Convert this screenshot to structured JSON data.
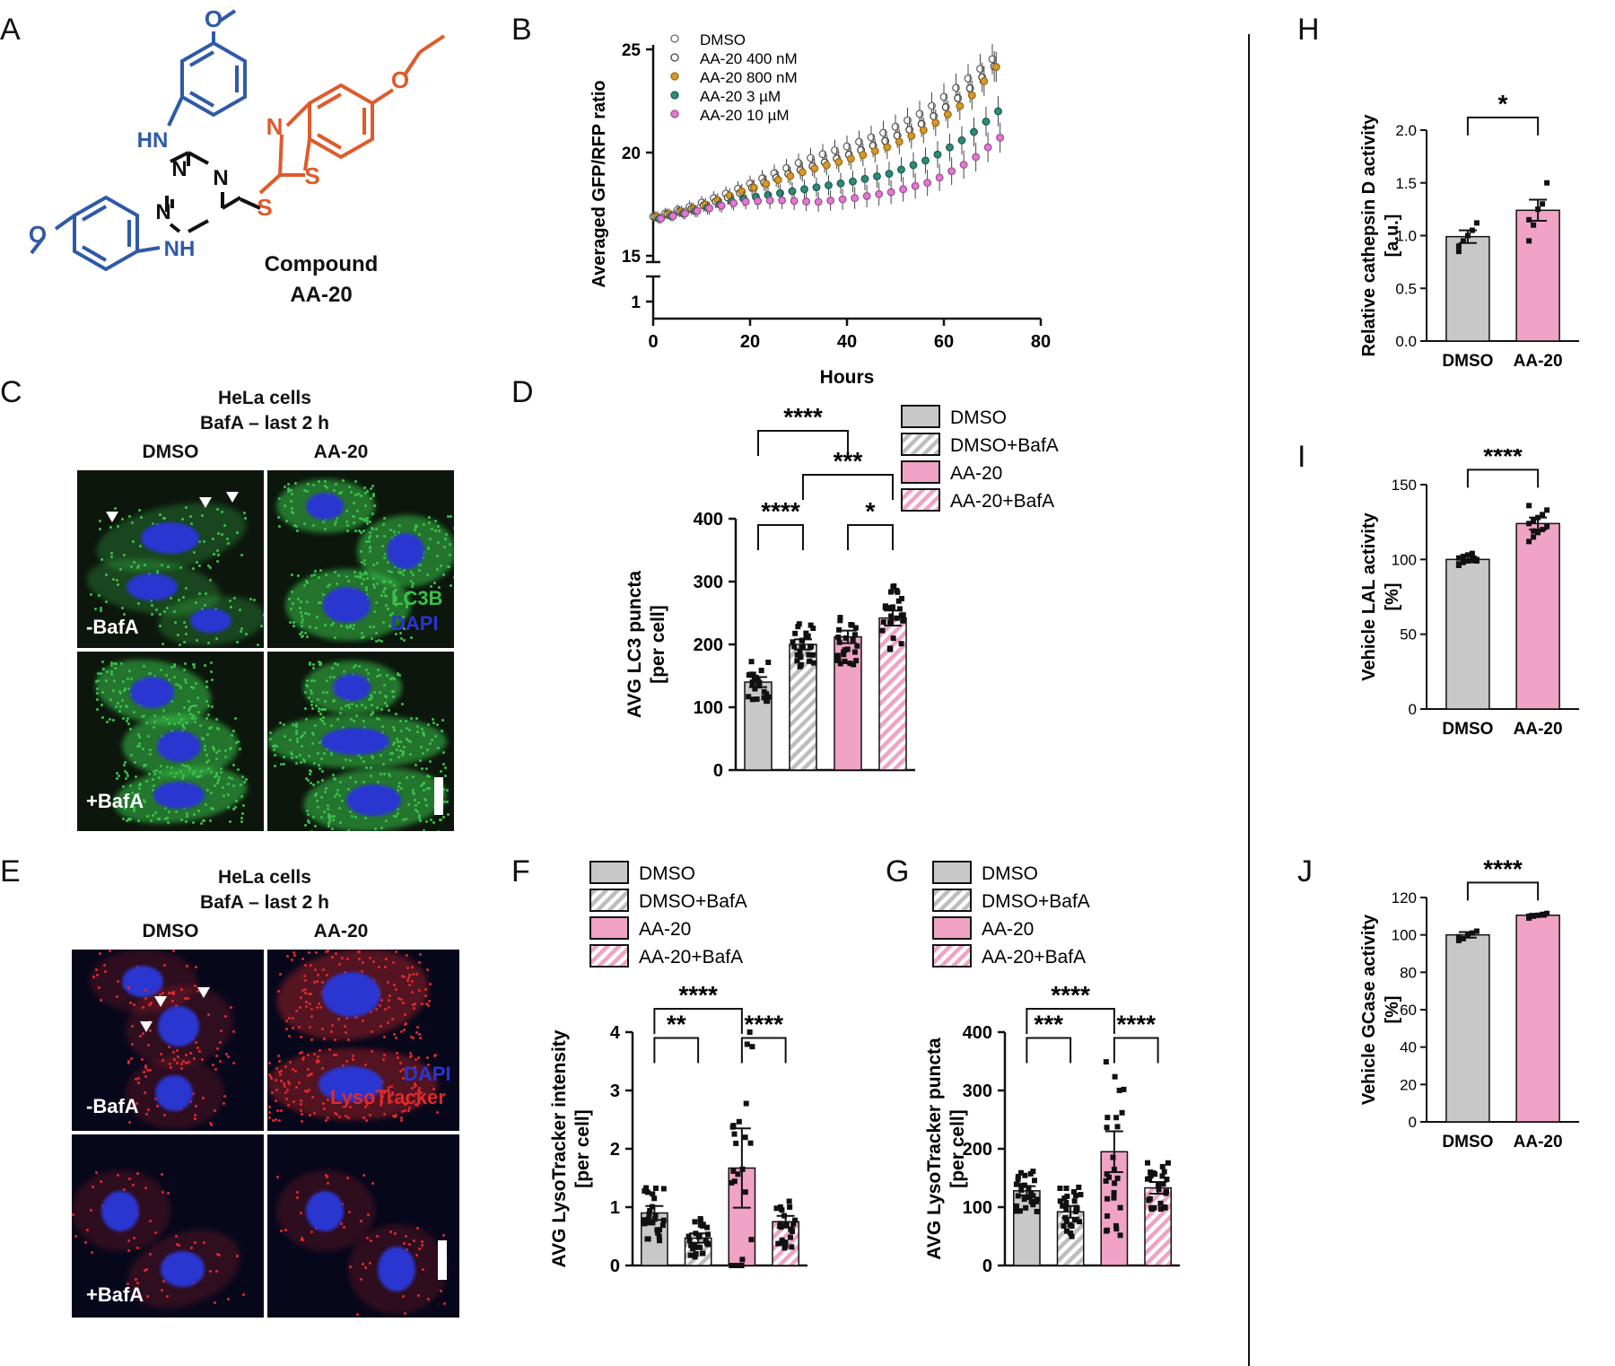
{
  "panels": {
    "A": {
      "letter": "A",
      "compound": [
        "Compound",
        "AA-20"
      ],
      "atoms": {
        "hn": "HN",
        "nh": "NH",
        "n": "N",
        "s": "S",
        "o": "O"
      },
      "colors": {
        "core": "#111111",
        "aniline": "#2e5aa8",
        "benzothiazole": "#e05a2b"
      }
    },
    "B": {
      "letter": "B"
    },
    "C": {
      "letter": "C",
      "title1": "HeLa cells",
      "title2": "BafA – last 2 h",
      "col_dmso": "DMSO",
      "col_aa20": "AA-20",
      "row_minus": "-BafA",
      "row_plus": "+BafA",
      "stain1": "LC3B",
      "stain2": "DAPI"
    },
    "D": {
      "letter": "D"
    },
    "E": {
      "letter": "E",
      "title1": "HeLa cells",
      "title2": "BafA – last 2 h",
      "col_dmso": "DMSO",
      "col_aa20": "AA-20",
      "row_minus": "-BafA",
      "row_plus": "+BafA",
      "stain1": "DAPI",
      "stain2": "LysoTracker"
    },
    "F": {
      "letter": "F"
    },
    "G": {
      "letter": "G"
    },
    "H": {
      "letter": "H"
    },
    "I": {
      "letter": "I"
    },
    "J": {
      "letter": "J"
    }
  },
  "colors": {
    "dmso": "#c8c8c8",
    "aa20": "#f0a3c4",
    "line_dmso": "#ffffff",
    "line_400": "#ffffff",
    "line_800": "#d9982a",
    "line_3": "#2e8b7a",
    "line_10": "#e07bd1",
    "lc3": "#39c24a",
    "dapi": "#2a36d0",
    "lyso": "#e12a2a"
  },
  "chart_data": [
    {
      "panel": "B",
      "type": "scatter",
      "xlabel": "Hours",
      "ylabel": "Averaged GFP/RFP ratio",
      "xlim": [
        0,
        80
      ],
      "xticks": [
        "0",
        "20",
        "40",
        "60",
        "80"
      ],
      "yticks_upper": [
        "15",
        "20",
        "25"
      ],
      "yticks_lower": [
        "1"
      ],
      "broken_axis": true,
      "series": [
        {
          "name": "DMSO",
          "x": [
            0,
            8,
            16,
            24,
            32,
            40,
            48,
            56,
            64,
            72
          ],
          "y": [
            16.9,
            17.4,
            18.1,
            18.9,
            19.7,
            20.3,
            21.0,
            22.0,
            23.4,
            24.9
          ]
        },
        {
          "name": "AA-20 400 nM",
          "x": [
            0,
            8,
            16,
            24,
            32,
            40,
            48,
            56,
            64,
            72
          ],
          "y": [
            16.9,
            17.3,
            17.9,
            18.7,
            19.3,
            19.9,
            20.6,
            21.5,
            22.9,
            24.6
          ]
        },
        {
          "name": "AA-20 800 nM",
          "x": [
            0,
            8,
            16,
            24,
            32,
            40,
            48,
            56,
            64,
            72
          ],
          "y": [
            16.9,
            17.3,
            18.0,
            18.6,
            19.2,
            19.7,
            20.3,
            21.2,
            22.5,
            24.7
          ]
        },
        {
          "name": "AA-20 3 µM",
          "x": [
            0,
            8,
            16,
            24,
            32,
            40,
            48,
            56,
            64,
            72
          ],
          "y": [
            16.8,
            17.2,
            17.7,
            18.0,
            18.3,
            18.6,
            19.0,
            19.7,
            20.8,
            22.4
          ]
        },
        {
          "name": "AA-20 10 µM",
          "x": [
            0,
            8,
            16,
            24,
            32,
            40,
            48,
            56,
            64,
            72
          ],
          "y": [
            16.8,
            17.2,
            17.6,
            17.7,
            17.6,
            17.8,
            18.1,
            18.6,
            19.6,
            21.1
          ]
        }
      ]
    },
    {
      "panel": "D",
      "type": "bar",
      "ylabel": "AVG LC3 puncta",
      "ylabel2": "[per cell]",
      "ylim": [
        0,
        400
      ],
      "yticks": [
        "0",
        "100",
        "200",
        "300",
        "400"
      ],
      "categories": [
        "DMSO",
        "DMSO+BafA",
        "AA-20",
        "AA-20+BafA"
      ],
      "values": [
        140,
        200,
        212,
        242
      ],
      "errors": [
        8,
        8,
        10,
        12
      ],
      "legend": [
        "DMSO",
        "DMSO+BafA",
        "AA-20",
        "AA-20+BafA"
      ],
      "significance": [
        {
          "from": 0,
          "to": 2,
          "label": "****",
          "level": 540
        },
        {
          "from": 1,
          "to": 3,
          "label": "***",
          "level": 470
        },
        {
          "from": 0,
          "to": 1,
          "label": "****",
          "level": 390
        },
        {
          "from": 2,
          "to": 3,
          "label": "*",
          "level": 390
        }
      ]
    },
    {
      "panel": "F",
      "type": "bar",
      "ylabel": "AVG LysoTracker intensity",
      "ylabel2": "[per cell]",
      "ylim": [
        0,
        4
      ],
      "yticks": [
        "0",
        "1",
        "2",
        "3",
        "4"
      ],
      "categories": [
        "DMSO",
        "DMSO+BafA",
        "AA-20",
        "AA-20+BafA"
      ],
      "values": [
        0.9,
        0.47,
        1.67,
        0.75
      ],
      "errors": [
        0.12,
        0.08,
        0.68,
        0.1
      ],
      "legend": [
        "DMSO",
        "DMSO+BafA",
        "AA-20",
        "AA-20+BafA"
      ],
      "significance": [
        {
          "from": 0,
          "to": 2,
          "label": "****",
          "level": 4.4
        },
        {
          "from": 0,
          "to": 1,
          "label": "**",
          "level": 3.9
        },
        {
          "from": 2,
          "to": 3,
          "label": "****",
          "level": 3.9
        }
      ]
    },
    {
      "panel": "G",
      "type": "bar",
      "ylabel": "AVG LysoTracker puncta",
      "ylabel2": "[per cell]",
      "ylim": [
        0,
        400
      ],
      "yticks": [
        "0",
        "100",
        "200",
        "300",
        "400"
      ],
      "categories": [
        "DMSO",
        "DMSO+BafA",
        "AA-20",
        "AA-20+BafA"
      ],
      "values": [
        128,
        92,
        195,
        133
      ],
      "errors": [
        8,
        10,
        35,
        10
      ],
      "legend": [
        "DMSO",
        "DMSO+BafA",
        "AA-20",
        "AA-20+BafA"
      ],
      "significance": [
        {
          "from": 0,
          "to": 2,
          "label": "****",
          "level": 440
        },
        {
          "from": 0,
          "to": 1,
          "label": "***",
          "level": 390
        },
        {
          "from": 2,
          "to": 3,
          "label": "****",
          "level": 390
        }
      ]
    },
    {
      "panel": "H",
      "type": "bar",
      "ylabel": "Relative cathepsin D activity",
      "ylabel2": "[a.u.]",
      "ylim": [
        0,
        2.0
      ],
      "yticks": [
        "0.0",
        "0.5",
        "1.0",
        "1.5",
        "2.0"
      ],
      "categories": [
        "DMSO",
        "AA-20"
      ],
      "values": [
        0.99,
        1.24
      ],
      "errors": [
        0.06,
        0.1
      ],
      "points": [
        [
          0.9,
          0.95,
          1.0,
          1.05,
          1.12,
          0.85
        ],
        [
          0.95,
          1.1,
          1.25,
          1.3,
          1.5,
          1.15
        ]
      ],
      "significance": [
        {
          "from": 0,
          "to": 1,
          "label": "*",
          "level": 2.12
        }
      ]
    },
    {
      "panel": "I",
      "type": "bar",
      "ylabel": "Vehicle LAL activity",
      "ylabel2": "[%]",
      "ylim": [
        0,
        150
      ],
      "yticks": [
        "0",
        "50",
        "100",
        "150"
      ],
      "categories": [
        "DMSO",
        "AA-20"
      ],
      "values": [
        100,
        124
      ],
      "errors": [
        2,
        4
      ],
      "points": [
        [
          96,
          98,
          99,
          100,
          100,
          101,
          102,
          103,
          104,
          99,
          97,
          101
        ],
        [
          112,
          115,
          118,
          120,
          122,
          124,
          126,
          128,
          130,
          133,
          136,
          119
        ]
      ],
      "significance": [
        {
          "from": 0,
          "to": 1,
          "label": "****",
          "level": 160
        }
      ]
    },
    {
      "panel": "J",
      "type": "bar",
      "ylabel": "Vehicle GCase activity",
      "ylabel2": "[%]",
      "ylim": [
        0,
        120
      ],
      "yticks": [
        "0",
        "20",
        "40",
        "60",
        "80",
        "100",
        "120"
      ],
      "categories": [
        "DMSO",
        "AA-20"
      ],
      "values": [
        100,
        110.5
      ],
      "errors": [
        1.5,
        0.8
      ],
      "points": [
        [
          97,
          98,
          100,
          101,
          102,
          99
        ],
        [
          109,
          110,
          110.5,
          111,
          111.5,
          110
        ]
      ],
      "significance": [
        {
          "from": 0,
          "to": 1,
          "label": "****",
          "level": 128
        }
      ]
    }
  ]
}
